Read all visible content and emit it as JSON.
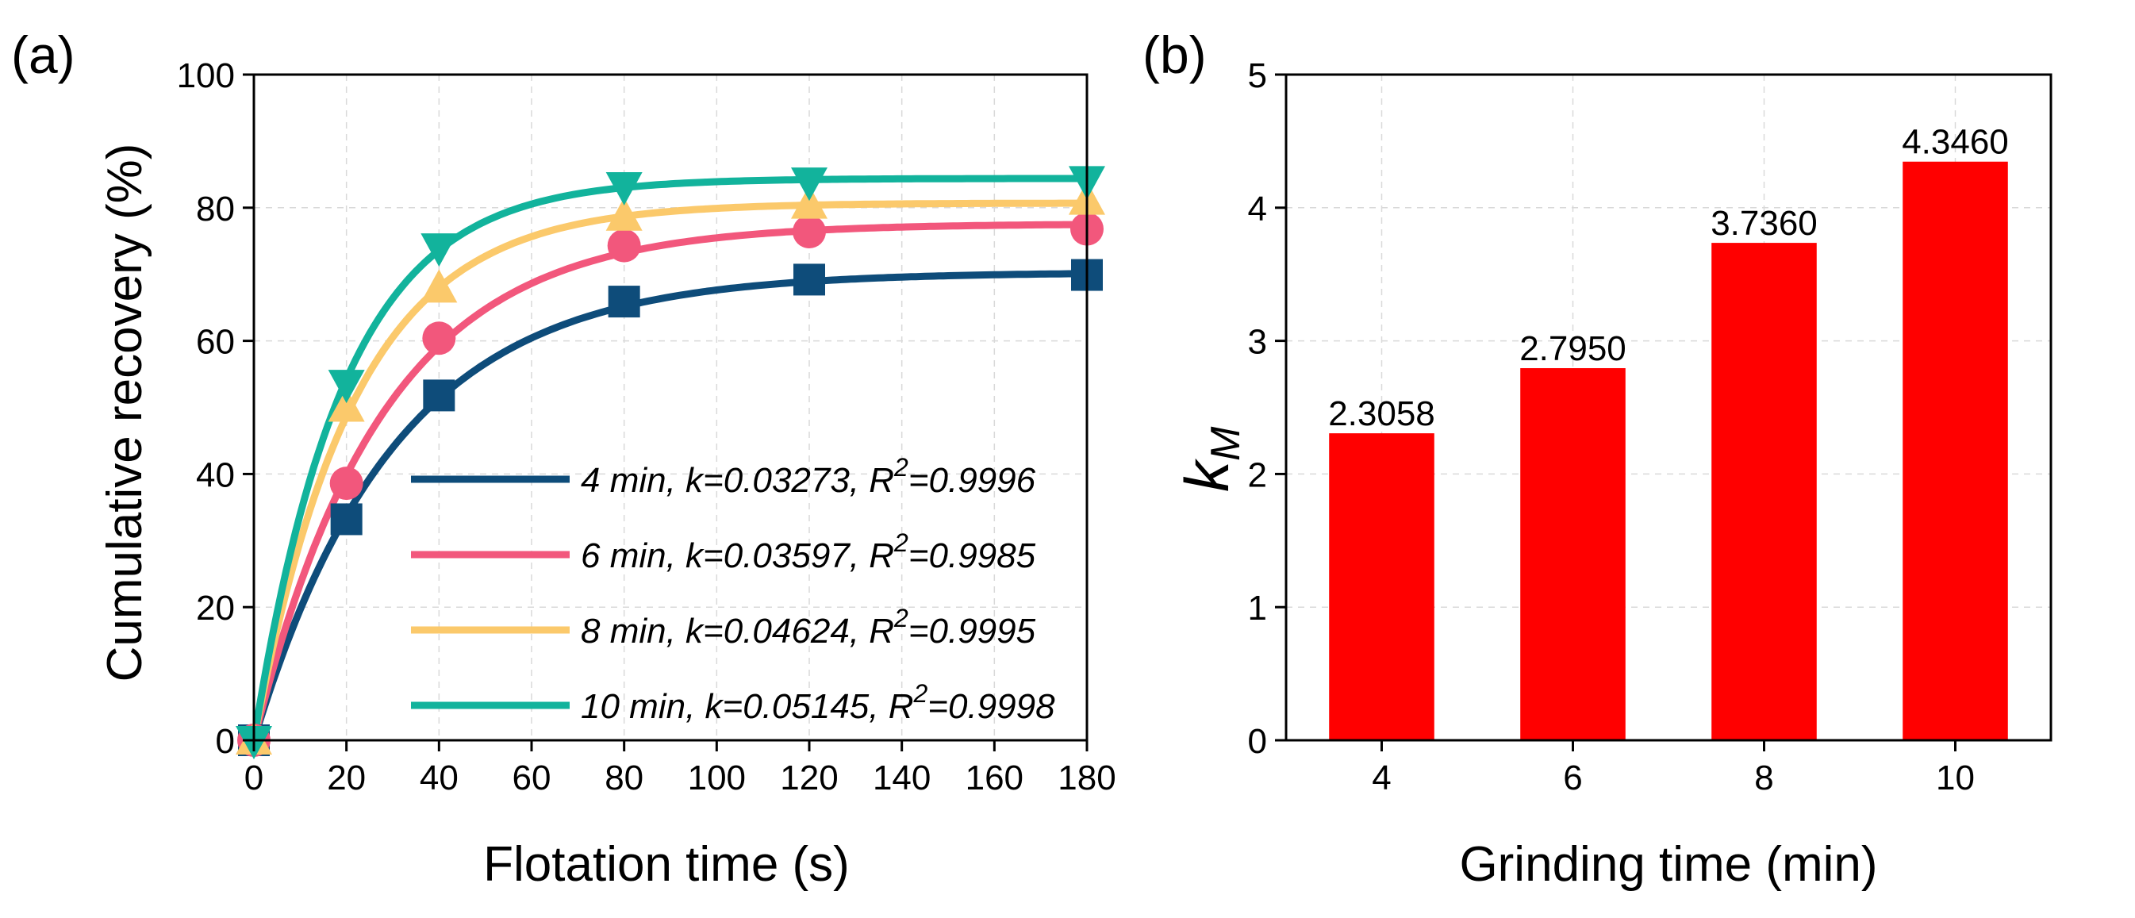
{
  "chart_data": [
    {
      "type": "line",
      "panel_label": "(a)",
      "xlabel": "Flotation time (s)",
      "ylabel": "Cumulative recovery (%)",
      "xlim": [
        0,
        180
      ],
      "ylim": [
        0,
        100
      ],
      "xticks": [
        0,
        20,
        40,
        60,
        80,
        100,
        120,
        140,
        160,
        180
      ],
      "yticks": [
        0,
        20,
        40,
        60,
        80,
        100
      ],
      "grid": true,
      "legend_position": "bottom-right",
      "series": [
        {
          "name": "4 min",
          "legend_prefix": "4 min, k=0.03273, R",
          "legend_sup": "2",
          "legend_suffix": "=0.9996",
          "k": 0.03273,
          "r2": 0.9996,
          "rmax": 70.3,
          "color": "#0e4c7a",
          "marker": "square",
          "x": [
            0,
            20,
            40,
            80,
            120,
            180
          ],
          "values": [
            0,
            33.2,
            51.8,
            65.9,
            69.2,
            69.9
          ]
        },
        {
          "name": "6 min",
          "legend_prefix": "6 min, k=0.03597, R",
          "legend_sup": "2",
          "legend_suffix": "=0.9985",
          "k": 0.03597,
          "r2": 0.9985,
          "rmax": 77.6,
          "color": "#f2577c",
          "marker": "circle",
          "x": [
            0,
            20,
            40,
            80,
            120,
            180
          ],
          "values": [
            0,
            38.6,
            60.4,
            74.3,
            76.4,
            76.8
          ]
        },
        {
          "name": "8 min",
          "legend_prefix": "8 min, k=0.04624, R",
          "legend_sup": "2",
          "legend_suffix": "=0.9995",
          "k": 0.04624,
          "r2": 0.9995,
          "rmax": 80.7,
          "color": "#fbc96b",
          "marker": "triangle-up",
          "x": [
            0,
            20,
            40,
            80,
            120,
            180
          ],
          "values": [
            0,
            50.0,
            67.9,
            78.7,
            80.5,
            81.1
          ]
        },
        {
          "name": "10 min",
          "legend_prefix": "10 min, k=0.05145, R",
          "legend_sup": "2",
          "legend_suffix": "=0.9998",
          "k": 0.05145,
          "r2": 0.9998,
          "rmax": 84.4,
          "color": "#12b39c",
          "marker": "triangle-down",
          "x": [
            0,
            20,
            40,
            80,
            120,
            180
          ],
          "values": [
            0,
            53.5,
            74.0,
            83.2,
            83.9,
            84.1
          ]
        }
      ]
    },
    {
      "type": "bar",
      "panel_label": "(b)",
      "xlabel": "Grinding time (min)",
      "ylabel_main": "k",
      "ylabel_sub": "M",
      "categories": [
        "4",
        "6",
        "8",
        "10"
      ],
      "values": [
        2.3058,
        2.795,
        3.736,
        4.346
      ],
      "value_labels": [
        "2.3058",
        "2.7950",
        "3.7360",
        "4.3460"
      ],
      "ylim": [
        0,
        5
      ],
      "yticks": [
        0,
        1,
        2,
        3,
        4,
        5
      ],
      "grid": true,
      "bar_color": "#ff0000"
    }
  ]
}
